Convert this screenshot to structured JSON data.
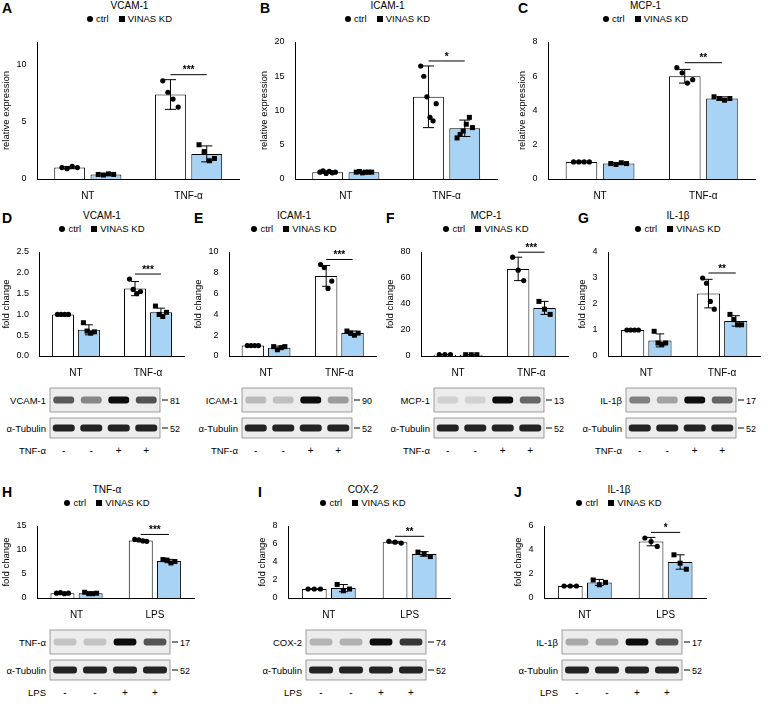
{
  "chart_data": [
    {
      "panel": "A",
      "type": "bar",
      "title": "VCAM-1",
      "y_label": "relative expression",
      "categories": [
        "NT",
        "TNF-α"
      ],
      "legend": "top",
      "grid": false,
      "ylim": [
        0,
        12
      ],
      "yticks": [
        0,
        5,
        10
      ],
      "series": [
        {
          "name": "ctrl",
          "color": "#ffffff",
          "marker": "circle",
          "values": [
            1.0,
            7.4
          ],
          "errors": [
            0.1,
            1.3
          ],
          "points": [
            [
              1.0,
              0.9,
              1.1,
              1.0
            ],
            [
              8.6,
              7.6,
              7.0,
              6.3
            ]
          ]
        },
        {
          "name": "VINAS KD",
          "color": "#a9d3f5",
          "marker": "square",
          "values": [
            0.4,
            2.2
          ],
          "errors": [
            0.05,
            0.7
          ],
          "points": [
            [
              0.4,
              0.35,
              0.45,
              0.4
            ],
            [
              3.0,
              2.4,
              1.6,
              1.8
            ]
          ]
        }
      ],
      "significance": [
        {
          "category": "TNF-α",
          "label": "***"
        }
      ]
    },
    {
      "panel": "B",
      "type": "bar",
      "title": "ICAM-1",
      "y_label": "relative expression",
      "categories": [
        "NT",
        "TNF-α"
      ],
      "legend": "top",
      "grid": false,
      "ylim": [
        0,
        20
      ],
      "yticks": [
        0,
        5,
        10,
        15,
        20
      ],
      "series": [
        {
          "name": "ctrl",
          "color": "#ffffff",
          "marker": "circle",
          "values": [
            1.0,
            12.0
          ],
          "errors": [
            0.2,
            4.5
          ],
          "points": [
            [
              1.0,
              1.2,
              0.8,
              1.1,
              0.9,
              1.0
            ],
            [
              16.5,
              15.0,
              12.0,
              9.0,
              8.5,
              11.0
            ]
          ]
        },
        {
          "name": "VINAS KD",
          "color": "#a9d3f5",
          "marker": "square",
          "values": [
            1.0,
            7.4
          ],
          "errors": [
            0.1,
            1.2
          ],
          "points": [
            [
              1.0,
              1.1,
              0.9,
              1.0,
              1.0,
              1.0
            ],
            [
              6.0,
              6.5,
              7.0,
              8.0,
              9.0,
              7.5
            ]
          ]
        }
      ],
      "significance": [
        {
          "category": "TNF-α",
          "label": "*"
        }
      ]
    },
    {
      "panel": "C",
      "type": "bar",
      "title": "MCP-1",
      "y_label": "relative expression",
      "categories": [
        "NT",
        "TNF-α"
      ],
      "legend": "top",
      "grid": false,
      "ylim": [
        0,
        8
      ],
      "yticks": [
        0,
        2,
        4,
        6,
        8
      ],
      "series": [
        {
          "name": "ctrl",
          "color": "#ffffff",
          "marker": "circle",
          "values": [
            1.0,
            6.0
          ],
          "errors": [
            0.05,
            0.4
          ],
          "points": [
            [
              1.0,
              1.0,
              1.0,
              1.0
            ],
            [
              6.5,
              6.2,
              5.6,
              5.8
            ]
          ]
        },
        {
          "name": "VINAS KD",
          "color": "#a9d3f5",
          "marker": "square",
          "values": [
            0.9,
            4.7
          ],
          "errors": [
            0.05,
            0.1
          ],
          "points": [
            [
              0.9,
              0.85,
              0.95,
              0.9
            ],
            [
              4.8,
              4.7,
              4.6,
              4.7
            ]
          ]
        }
      ],
      "significance": [
        {
          "category": "TNF-α",
          "label": "**"
        }
      ]
    },
    {
      "panel": "D",
      "type": "bar",
      "title": "VCAM-1",
      "y_label": "fold change",
      "categories": [
        "NT",
        "TNF-α"
      ],
      "legend": "top",
      "grid": false,
      "ylim": [
        0,
        2.5
      ],
      "yticks": [
        {
          "value": 0,
          "label": "0.0"
        },
        {
          "value": 0.5,
          "label": "0.5"
        },
        {
          "value": 1,
          "label": "1.0"
        },
        {
          "value": 1.5,
          "label": "1.5"
        },
        {
          "value": 2,
          "label": "2.0"
        },
        {
          "value": 2.5,
          "label": "2.5"
        }
      ],
      "series": [
        {
          "name": "ctrl",
          "color": "#ffffff",
          "marker": "circle",
          "values": [
            1.0,
            1.62
          ],
          "errors": [
            0,
            0.17
          ],
          "points": [
            [
              1.0,
              1.0,
              1.0,
              1.0
            ],
            [
              1.85,
              1.6,
              1.5,
              1.55
            ]
          ]
        },
        {
          "name": "VINAS KD",
          "color": "#a9d3f5",
          "marker": "square",
          "values": [
            0.63,
            1.05
          ],
          "errors": [
            0.12,
            0.1
          ],
          "points": [
            [
              0.8,
              0.6,
              0.55,
              0.58
            ],
            [
              1.2,
              1.0,
              0.95,
              1.05
            ]
          ]
        }
      ],
      "significance": [
        {
          "category": "TNF-α",
          "label": "***"
        }
      ],
      "blot": {
        "protein": "VCAM-1",
        "mw": 81,
        "loading": "α-Tubulin",
        "loading_mw": 52,
        "treatment": "TNF-α",
        "lanes": [
          "-",
          "-",
          "+",
          "+"
        ]
      }
    },
    {
      "panel": "E",
      "type": "bar",
      "title": "ICAM-1",
      "y_label": "fold change",
      "categories": [
        "NT",
        "TNF-α"
      ],
      "legend": "top",
      "grid": false,
      "ylim": [
        0,
        10
      ],
      "yticks": [
        0,
        2,
        4,
        6,
        8,
        10
      ],
      "series": [
        {
          "name": "ctrl",
          "color": "#ffffff",
          "marker": "circle",
          "values": [
            1.0,
            7.7
          ],
          "errors": [
            0.05,
            1.0
          ],
          "points": [
            [
              1.0,
              1.0,
              1.0,
              1.0
            ],
            [
              8.8,
              8.5,
              6.5,
              7.2
            ]
          ]
        },
        {
          "name": "VINAS KD",
          "color": "#a9d3f5",
          "marker": "square",
          "values": [
            0.8,
            2.2
          ],
          "errors": [
            0.15,
            0.2
          ],
          "points": [
            [
              0.9,
              0.6,
              0.8,
              0.9
            ],
            [
              2.4,
              2.2,
              2.0,
              2.2
            ]
          ]
        }
      ],
      "significance": [
        {
          "category": "TNF-α",
          "label": "***"
        }
      ],
      "blot": {
        "protein": "ICAM-1",
        "mw": 90,
        "loading": "α-Tubulin",
        "loading_mw": 52,
        "treatment": "TNF-α",
        "lanes": [
          "-",
          "-",
          "+",
          "+"
        ]
      }
    },
    {
      "panel": "F",
      "type": "bar",
      "title": "MCP-1",
      "y_label": "fold change",
      "categories": [
        "NT",
        "TNF-α"
      ],
      "legend": "top",
      "grid": false,
      "ylim": [
        0,
        80
      ],
      "yticks": [
        0,
        20,
        40,
        60,
        80
      ],
      "series": [
        {
          "name": "ctrl",
          "color": "#ffffff",
          "marker": "circle",
          "values": [
            1.0,
            67
          ],
          "errors": [
            0.05,
            9
          ],
          "points": [
            [
              1.0,
              1.0,
              1.0
            ],
            [
              76,
              66,
              58
            ]
          ]
        },
        {
          "name": "VINAS KD",
          "color": "#a9d3f5",
          "marker": "square",
          "values": [
            1.0,
            37
          ],
          "errors": [
            0.1,
            5
          ],
          "points": [
            [
              1.0,
              1.0,
              1.0
            ],
            [
              42,
              36,
              32
            ]
          ]
        }
      ],
      "significance": [
        {
          "category": "TNF-α",
          "label": "***"
        }
      ],
      "blot": {
        "protein": "MCP-1",
        "mw": 13,
        "loading": "α-Tubulin",
        "loading_mw": 52,
        "treatment": "TNF-α",
        "lanes": [
          "-",
          "-",
          "+",
          "+"
        ]
      }
    },
    {
      "panel": "G",
      "type": "bar",
      "title": "IL-1β",
      "y_label": "fold change",
      "categories": [
        "NT",
        "TNF-α"
      ],
      "legend": "top",
      "grid": false,
      "ylim": [
        0,
        4
      ],
      "yticks": [
        0,
        1,
        2,
        3,
        4
      ],
      "series": [
        {
          "name": "ctrl",
          "color": "#ffffff",
          "marker": "circle",
          "values": [
            1.0,
            2.4
          ],
          "errors": [
            0,
            0.55
          ],
          "points": [
            [
              1.0,
              1.0,
              1.0,
              1.0
            ],
            [
              3.0,
              2.8,
              2.1,
              1.8
            ]
          ]
        },
        {
          "name": "VINAS KD",
          "color": "#a9d3f5",
          "marker": "square",
          "values": [
            0.6,
            1.35
          ],
          "errors": [
            0.25,
            0.2
          ],
          "points": [
            [
              0.95,
              0.5,
              0.45,
              0.5
            ],
            [
              1.6,
              1.4,
              1.2,
              1.2
            ]
          ]
        }
      ],
      "significance": [
        {
          "category": "TNF-α",
          "label": "**"
        }
      ],
      "blot": {
        "protein": "IL-1β",
        "mw": 17,
        "loading": "α-Tubulin",
        "loading_mw": 52,
        "treatment": "TNF-α",
        "lanes": [
          "-",
          "-",
          "+",
          "+"
        ]
      }
    },
    {
      "panel": "H",
      "type": "bar",
      "title": "TNF-α",
      "y_label": "fold change",
      "categories": [
        "NT",
        "LPS"
      ],
      "legend": "top",
      "grid": false,
      "ylim": [
        0,
        15
      ],
      "yticks": [
        0,
        5,
        10,
        15
      ],
      "series": [
        {
          "name": "ctrl",
          "color": "#ffffff",
          "marker": "circle",
          "values": [
            1.0,
            12.0
          ],
          "errors": [
            0.1,
            0.2
          ],
          "points": [
            [
              1.0,
              1.1,
              0.9,
              1.0
            ],
            [
              12.2,
              12.1,
              11.9,
              11.8
            ]
          ]
        },
        {
          "name": "VINAS KD",
          "color": "#a9d3f5",
          "marker": "square",
          "values": [
            1.0,
            7.7
          ],
          "errors": [
            0.2,
            0.35
          ],
          "points": [
            [
              1.2,
              0.9,
              0.9,
              1.0
            ],
            [
              8.0,
              7.9,
              7.3,
              7.6
            ]
          ]
        }
      ],
      "significance": [
        {
          "category": "LPS",
          "label": "***"
        }
      ],
      "blot": {
        "protein": "TNF-α",
        "mw": 17,
        "loading": "α-Tubulin",
        "loading_mw": 52,
        "treatment": "LPS",
        "lanes": [
          "-",
          "-",
          "+",
          "+"
        ]
      }
    },
    {
      "panel": "I",
      "type": "bar",
      "title": "COX-2",
      "y_label": "fold change",
      "categories": [
        "NT",
        "LPS"
      ],
      "legend": "top",
      "grid": false,
      "ylim": [
        0,
        8
      ],
      "yticks": [
        0,
        2,
        4,
        6,
        8
      ],
      "series": [
        {
          "name": "ctrl",
          "color": "#ffffff",
          "marker": "circle",
          "values": [
            1.0,
            6.2
          ],
          "errors": [
            0.05,
            0.1
          ],
          "points": [
            [
              1.0,
              1.0,
              1.0
            ],
            [
              6.3,
              6.2,
              6.1
            ]
          ]
        },
        {
          "name": "VINAS KD",
          "color": "#a9d3f5",
          "marker": "square",
          "values": [
            1.1,
            4.9
          ],
          "errors": [
            0.4,
            0.25
          ],
          "points": [
            [
              1.5,
              0.8,
              1.0
            ],
            [
              5.1,
              4.9,
              4.6
            ]
          ]
        }
      ],
      "significance": [
        {
          "category": "LPS",
          "label": "**"
        }
      ],
      "blot": {
        "protein": "COX-2",
        "mw": 74,
        "loading": "α-Tubulin",
        "loading_mw": 52,
        "treatment": "LPS",
        "lanes": [
          "-",
          "-",
          "+",
          "+"
        ]
      }
    },
    {
      "panel": "J",
      "type": "bar",
      "title": "IL-1β",
      "y_label": "fold change",
      "categories": [
        "NT",
        "LPS"
      ],
      "legend": "top",
      "grid": false,
      "ylim": [
        0,
        6
      ],
      "yticks": [
        0,
        2,
        4,
        6
      ],
      "series": [
        {
          "name": "ctrl",
          "color": "#ffffff",
          "marker": "circle",
          "values": [
            1.0,
            4.7
          ],
          "errors": [
            0.05,
            0.35
          ],
          "points": [
            [
              1.0,
              1.0,
              1.0
            ],
            [
              5.0,
              4.7,
              4.3
            ]
          ]
        },
        {
          "name": "VINAS KD",
          "color": "#a9d3f5",
          "marker": "square",
          "values": [
            1.3,
            3.0
          ],
          "errors": [
            0.25,
            0.6
          ],
          "points": [
            [
              1.5,
              1.1,
              1.3
            ],
            [
              3.6,
              2.9,
              2.4
            ]
          ]
        }
      ],
      "significance": [
        {
          "category": "LPS",
          "label": "*"
        }
      ],
      "blot": {
        "protein": "IL-1β",
        "mw": 17,
        "loading": "α-Tubulin",
        "loading_mw": 52,
        "treatment": "LPS",
        "lanes": [
          "-",
          "-",
          "+",
          "+"
        ]
      }
    }
  ]
}
